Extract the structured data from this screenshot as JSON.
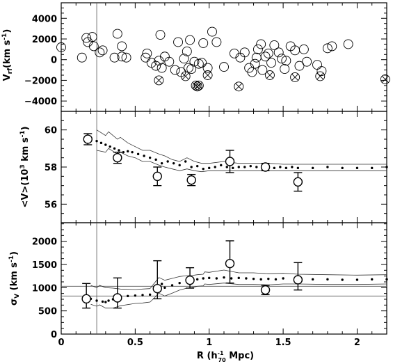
{
  "chart_data": [
    {
      "type": "scatter",
      "ylabel_main": "V",
      "ylabel_sub": "rf",
      "ylabel_unit": "(km s",
      "ylabel_exp": "-1",
      "ylabel_close": ")",
      "xlim": [
        0,
        2.2
      ],
      "ylim": [
        -5000,
        5500
      ],
      "yticks": [
        -4000,
        -2000,
        0,
        2000,
        4000
      ],
      "ytick_labels": [
        "−4000",
        "−2000",
        "0",
        "2000",
        "4000"
      ],
      "vline_x": 0.24,
      "series": [
        {
          "marker": "open-circle",
          "points": [
            [
              0.0,
              1200
            ],
            [
              0.14,
              200
            ],
            [
              0.17,
              2100
            ],
            [
              0.18,
              1700
            ],
            [
              0.21,
              2200
            ],
            [
              0.22,
              1300
            ],
            [
              0.26,
              700
            ],
            [
              0.28,
              900
            ],
            [
              0.36,
              200
            ],
            [
              0.38,
              2500
            ],
            [
              0.41,
              1300
            ],
            [
              0.41,
              300
            ],
            [
              0.44,
              200
            ],
            [
              0.57,
              200
            ],
            [
              0.58,
              600
            ],
            [
              0.61,
              -300
            ],
            [
              0.64,
              -600
            ],
            [
              0.66,
              -100
            ],
            [
              0.67,
              2400
            ],
            [
              0.68,
              -800
            ],
            [
              0.7,
              300
            ],
            [
              0.73,
              -200
            ],
            [
              0.77,
              -1000
            ],
            [
              0.79,
              1700
            ],
            [
              0.81,
              -1200
            ],
            [
              0.83,
              100
            ],
            [
              0.85,
              800
            ],
            [
              0.86,
              -800
            ],
            [
              0.87,
              1900
            ],
            [
              0.88,
              -900
            ],
            [
              0.9,
              -200
            ],
            [
              0.93,
              -400
            ],
            [
              0.95,
              -300
            ],
            [
              0.96,
              1600
            ],
            [
              0.99,
              -800
            ],
            [
              1.02,
              2700
            ],
            [
              1.05,
              1700
            ],
            [
              1.1,
              -700
            ],
            [
              1.17,
              600
            ],
            [
              1.21,
              200
            ],
            [
              1.24,
              700
            ],
            [
              1.27,
              -800
            ],
            [
              1.29,
              -1200
            ],
            [
              1.31,
              -400
            ],
            [
              1.32,
              200
            ],
            [
              1.33,
              1000
            ],
            [
              1.35,
              1500
            ],
            [
              1.36,
              -1000
            ],
            [
              1.38,
              300
            ],
            [
              1.4,
              600
            ],
            [
              1.42,
              -300
            ],
            [
              1.44,
              1400
            ],
            [
              1.47,
              700
            ],
            [
              1.49,
              100
            ],
            [
              1.51,
              -900
            ],
            [
              1.52,
              -100
            ],
            [
              1.55,
              1300
            ],
            [
              1.58,
              900
            ],
            [
              1.61,
              -600
            ],
            [
              1.64,
              1000
            ],
            [
              1.66,
              -200
            ],
            [
              1.73,
              -500
            ],
            [
              1.76,
              -1100
            ],
            [
              1.8,
              1100
            ],
            [
              1.83,
              1300
            ],
            [
              1.94,
              1500
            ]
          ]
        },
        {
          "marker": "crossed-circle",
          "points": [
            [
              0.66,
              -2000
            ],
            [
              0.84,
              -1600
            ],
            [
              0.91,
              -2500
            ],
            [
              0.92,
              -2600
            ],
            [
              0.93,
              -2500
            ],
            [
              0.99,
              -1500
            ],
            [
              1.2,
              -2600
            ],
            [
              1.41,
              -1500
            ],
            [
              1.58,
              -1700
            ],
            [
              1.75,
              -1600
            ],
            [
              2.19,
              -1900
            ]
          ]
        }
      ]
    },
    {
      "type": "line",
      "ylabel_main": "<V>",
      "ylabel_unit": "(10",
      "ylabel_exp": "3",
      "ylabel_rest": " km s",
      "ylabel_exp2": "-1",
      "ylabel_close": ")",
      "xlim": [
        0,
        2.2
      ],
      "ylim": [
        55,
        61
      ],
      "yticks": [
        56,
        58,
        60
      ],
      "ytick_labels": [
        "56",
        "58",
        "60"
      ],
      "vline_x": 0.24,
      "series": [
        {
          "name": "",
          "style": "dots",
          "x": [
            0.24,
            0.27,
            0.3,
            0.33,
            0.36,
            0.39,
            0.42,
            0.45,
            0.48,
            0.52,
            0.56,
            0.6,
            0.64,
            0.68,
            0.72,
            0.76,
            0.8,
            0.84,
            0.88,
            0.92,
            0.96,
            1.0,
            1.04,
            1.08,
            1.12,
            1.16,
            1.2,
            1.24,
            1.28,
            1.32,
            1.36,
            1.4,
            1.44,
            1.48,
            1.52,
            1.56,
            1.6,
            1.7,
            1.8,
            1.9,
            2.0,
            2.1,
            2.2
          ],
          "y": [
            59.4,
            59.3,
            59.2,
            59.1,
            59.0,
            58.9,
            58.8,
            58.85,
            58.8,
            58.7,
            58.6,
            58.5,
            58.4,
            58.2,
            58.3,
            58.2,
            58.1,
            58.3,
            58.0,
            58.05,
            57.9,
            57.95,
            58.0,
            58.1,
            58.0,
            57.95,
            58.0,
            58.0,
            58.05,
            58.0,
            57.9,
            58.0,
            57.95,
            58.0,
            57.95,
            58.0,
            57.95,
            57.95,
            58.0,
            57.95,
            57.95,
            57.95,
            58.0
          ]
        },
        {
          "name": "",
          "style": "upper-band",
          "x": [
            0.24,
            0.3,
            0.32,
            0.38,
            0.4,
            0.45,
            0.5,
            0.55,
            0.6,
            0.66,
            0.7,
            0.75,
            0.8,
            0.85,
            0.9,
            0.95,
            1.0,
            1.1,
            1.2,
            1.3,
            1.4,
            1.5,
            1.6,
            1.8,
            2.0,
            2.2
          ],
          "y": [
            60.0,
            59.7,
            59.9,
            59.5,
            59.6,
            59.3,
            59.1,
            58.9,
            58.9,
            58.7,
            58.6,
            58.4,
            58.3,
            58.5,
            58.3,
            58.2,
            58.2,
            58.3,
            58.2,
            58.2,
            58.2,
            58.15,
            58.15,
            58.15,
            58.15,
            58.15
          ]
        },
        {
          "name": "",
          "style": "lower-band",
          "x": [
            0.24,
            0.3,
            0.32,
            0.38,
            0.4,
            0.45,
            0.5,
            0.55,
            0.6,
            0.66,
            0.7,
            0.75,
            0.8,
            0.85,
            0.9,
            0.95,
            1.0,
            1.1,
            1.2,
            1.3,
            1.4,
            1.5,
            1.6,
            1.8,
            2.0,
            2.2
          ],
          "y": [
            58.9,
            58.8,
            59.0,
            58.7,
            58.8,
            58.6,
            58.5,
            58.3,
            58.3,
            58.1,
            58.0,
            57.9,
            57.8,
            57.9,
            57.8,
            57.75,
            57.8,
            57.8,
            57.8,
            57.8,
            57.8,
            57.8,
            57.8,
            57.8,
            57.8,
            57.8
          ]
        },
        {
          "name": "",
          "style": "binned-errorbars",
          "x": [
            0.18,
            0.38,
            0.65,
            0.88,
            1.14,
            1.38,
            1.6
          ],
          "y": [
            59.5,
            58.5,
            57.5,
            57.3,
            58.3,
            58.0,
            57.2
          ],
          "yerr_low": [
            0.3,
            0.3,
            0.5,
            0.3,
            0.6,
            0.2,
            0.5
          ],
          "yerr_high": [
            0.3,
            0.3,
            0.5,
            0.3,
            0.6,
            0.2,
            0.5
          ]
        }
      ]
    },
    {
      "type": "line",
      "ylabel_main": "σ",
      "ylabel_sub": "V",
      "ylabel_unit": "(km s",
      "ylabel_exp": "-1",
      "ylabel_close": ")",
      "xlabel_main": "R (h",
      "xlabel_sub": "70",
      "xlabel_exp": "-1",
      "xlabel_rest": " Mpc)",
      "xlim": [
        0,
        2.2
      ],
      "ylim": [
        0,
        2400
      ],
      "xticks": [
        0,
        0.5,
        1,
        1.5,
        2
      ],
      "xtick_labels": [
        "0",
        "0.5",
        "1",
        "1.5",
        "2"
      ],
      "yticks": [
        0,
        500,
        1000,
        1500,
        2000
      ],
      "ytick_labels": [
        "0",
        "500",
        "1000",
        "1500",
        "2000"
      ],
      "vline_x": 0.24,
      "hlines": [
        1030,
        820
      ],
      "series": [
        {
          "name": "",
          "style": "dots",
          "x": [
            0.2,
            0.24,
            0.28,
            0.3,
            0.32,
            0.35,
            0.4,
            0.45,
            0.5,
            0.55,
            0.6,
            0.64,
            0.68,
            0.7,
            0.75,
            0.8,
            0.85,
            0.88,
            0.92,
            0.96,
            1.0,
            1.05,
            1.1,
            1.15,
            1.2,
            1.25,
            1.3,
            1.35,
            1.4,
            1.45,
            1.5,
            1.6,
            1.7,
            1.8,
            1.9,
            2.0,
            2.1,
            2.2
          ],
          "y": [
            760,
            720,
            700,
            690,
            720,
            750,
            800,
            820,
            830,
            840,
            850,
            1000,
            1080,
            1000,
            1050,
            1100,
            1150,
            1160,
            1180,
            1200,
            1210,
            1200,
            1220,
            1200,
            1210,
            1200,
            1190,
            1180,
            1190,
            1180,
            1200,
            1190,
            1180,
            1180,
            1170,
            1170,
            1180,
            1180
          ]
        },
        {
          "name": "",
          "style": "upper-band",
          "x": [
            0.2,
            0.24,
            0.26,
            0.3,
            0.35,
            0.4,
            0.5,
            0.55,
            0.6,
            0.63,
            0.66,
            0.7,
            0.75,
            0.8,
            0.85,
            0.88,
            0.92,
            0.96,
            0.97,
            1.0,
            1.1,
            1.2,
            1.3,
            1.4,
            1.5,
            1.6,
            1.8,
            2.0,
            2.2
          ],
          "y": [
            1050,
            1000,
            1050,
            1000,
            990,
            970,
            960,
            970,
            980,
            1100,
            1220,
            1160,
            1200,
            1240,
            1260,
            1260,
            1280,
            1290,
            1340,
            1330,
            1380,
            1320,
            1320,
            1300,
            1310,
            1290,
            1280,
            1270,
            1280
          ]
        },
        {
          "name": "",
          "style": "lower-band",
          "x": [
            0.2,
            0.24,
            0.26,
            0.3,
            0.35,
            0.4,
            0.5,
            0.55,
            0.6,
            0.63,
            0.66,
            0.7,
            0.75,
            0.8,
            0.85,
            0.88,
            0.92,
            0.96,
            0.97,
            1.0,
            1.1,
            1.2,
            1.3,
            1.4,
            1.5,
            1.6,
            1.8,
            2.0,
            2.2
          ],
          "y": [
            640,
            600,
            630,
            560,
            560,
            610,
            660,
            670,
            690,
            780,
            880,
            820,
            880,
            950,
            990,
            1000,
            1030,
            1040,
            1080,
            1070,
            1100,
            1070,
            1070,
            1060,
            1080,
            1080,
            1070,
            1070,
            1080
          ]
        },
        {
          "name": "",
          "style": "binned-errorbars",
          "x": [
            0.17,
            0.38,
            0.65,
            0.87,
            1.14,
            1.38,
            1.6
          ],
          "y": [
            760,
            780,
            980,
            1160,
            1520,
            950,
            1170
          ],
          "yerr_low": [
            200,
            220,
            220,
            170,
            420,
            100,
            220
          ],
          "yerr_high": [
            330,
            430,
            600,
            270,
            490,
            100,
            370
          ]
        }
      ]
    }
  ]
}
